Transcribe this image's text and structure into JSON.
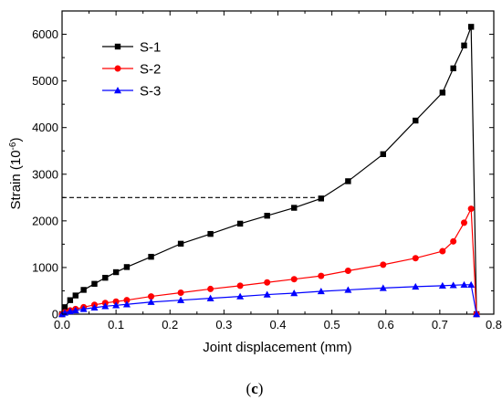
{
  "chart_data": {
    "type": "line",
    "xlabel": "Joint displacement (mm)",
    "ylabel_main": "Strain (10",
    "ylabel_exp": "-6",
    "ylabel_close": ")",
    "xlim": [
      0,
      0.8
    ],
    "ylim": [
      0,
      6500
    ],
    "xticks": [
      0.0,
      0.1,
      0.2,
      0.3,
      0.4,
      0.5,
      0.6,
      0.7,
      0.8
    ],
    "xtick_labels": [
      "0.0",
      "0.1",
      "0.2",
      "0.3",
      "0.4",
      "0.5",
      "0.6",
      "0.7",
      "0.8"
    ],
    "yticks": [
      0,
      1000,
      2000,
      3000,
      4000,
      5000,
      6000
    ],
    "ytick_labels": [
      "0",
      "1000",
      "2000",
      "3000",
      "4000",
      "5000",
      "6000"
    ],
    "legend_position": "top-left",
    "grid": false,
    "reference_line": {
      "x": [
        0,
        0.47
      ],
      "y": 2500,
      "style": "dashed"
    },
    "series": [
      {
        "name": "S-1",
        "color": "#000000",
        "marker": "square",
        "x": [
          0.0,
          0.005,
          0.015,
          0.025,
          0.04,
          0.06,
          0.08,
          0.1,
          0.12,
          0.165,
          0.22,
          0.275,
          0.33,
          0.38,
          0.43,
          0.48,
          0.53,
          0.595,
          0.655,
          0.705,
          0.725,
          0.745,
          0.758,
          0.768
        ],
        "y": [
          0,
          150,
          300,
          400,
          520,
          650,
          780,
          900,
          1010,
          1230,
          1510,
          1720,
          1940,
          2110,
          2280,
          2480,
          2850,
          3430,
          4150,
          4750,
          5270,
          5760,
          6160,
          0
        ]
      },
      {
        "name": "S-2",
        "color": "#ff0000",
        "marker": "circle",
        "x": [
          0.0,
          0.005,
          0.015,
          0.025,
          0.04,
          0.06,
          0.08,
          0.1,
          0.12,
          0.165,
          0.22,
          0.275,
          0.33,
          0.38,
          0.43,
          0.48,
          0.53,
          0.595,
          0.655,
          0.705,
          0.725,
          0.745,
          0.758,
          0.768
        ],
        "y": [
          0,
          40,
          80,
          110,
          150,
          200,
          240,
          270,
          300,
          380,
          460,
          540,
          610,
          680,
          750,
          820,
          930,
          1060,
          1200,
          1350,
          1560,
          1960,
          2260,
          0
        ]
      },
      {
        "name": "S-3",
        "color": "#0000ff",
        "marker": "triangle",
        "x": [
          0.0,
          0.005,
          0.015,
          0.025,
          0.04,
          0.06,
          0.08,
          0.1,
          0.12,
          0.165,
          0.22,
          0.275,
          0.33,
          0.38,
          0.43,
          0.48,
          0.53,
          0.595,
          0.655,
          0.705,
          0.725,
          0.745,
          0.758,
          0.768
        ],
        "y": [
          0,
          30,
          60,
          80,
          110,
          140,
          170,
          190,
          210,
          260,
          300,
          340,
          380,
          420,
          450,
          490,
          520,
          560,
          590,
          610,
          620,
          630,
          630,
          0
        ]
      }
    ]
  },
  "caption": {
    "open": "(",
    "letter": "c",
    "close": ")"
  }
}
